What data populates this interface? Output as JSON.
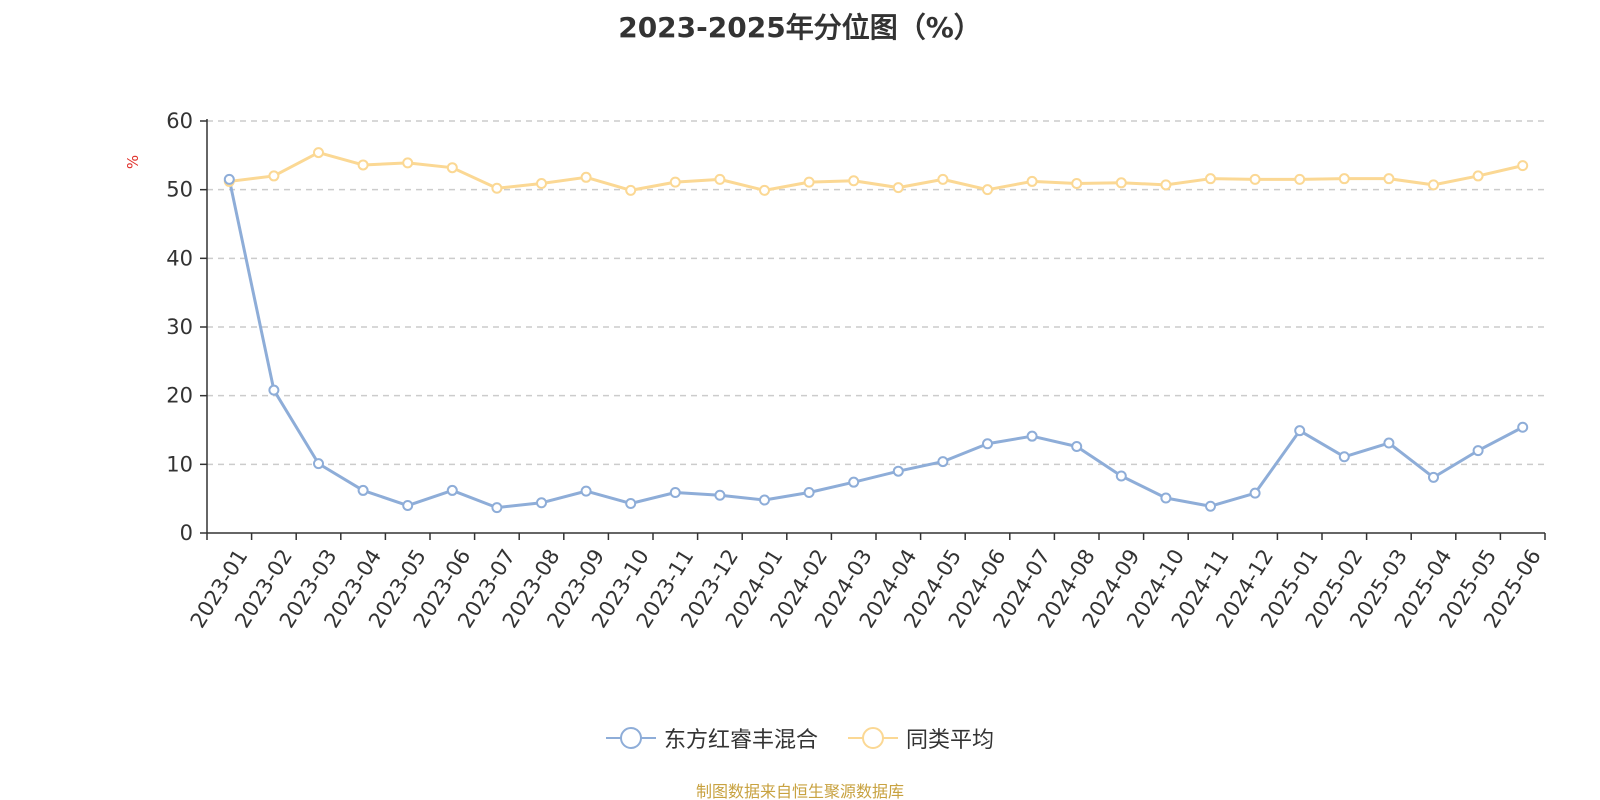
{
  "chart_data": {
    "type": "line",
    "title": "2023-2025年分位图（%）",
    "ylabel": "%",
    "ylim": [
      0,
      60
    ],
    "yticks": [
      0,
      10,
      20,
      30,
      40,
      50,
      60
    ],
    "grid": true,
    "legend_position": "bottom",
    "categories": [
      "2023-01",
      "2023-02",
      "2023-03",
      "2023-04",
      "2023-05",
      "2023-06",
      "2023-07",
      "2023-08",
      "2023-09",
      "2023-10",
      "2023-11",
      "2023-12",
      "2024-01",
      "2024-02",
      "2024-03",
      "2024-04",
      "2024-05",
      "2024-06",
      "2024-07",
      "2024-08",
      "2024-09",
      "2024-10",
      "2024-11",
      "2024-12",
      "2025-01",
      "2025-02",
      "2025-03",
      "2025-04",
      "2025-05",
      "2025-06"
    ],
    "series": [
      {
        "name": "东方红睿丰混合",
        "color": "#8eadd8",
        "values": [
          51.5,
          20.8,
          10.1,
          6.2,
          4.0,
          6.2,
          3.7,
          4.4,
          6.1,
          4.3,
          5.9,
          5.5,
          4.8,
          5.9,
          7.4,
          9.0,
          10.4,
          13.0,
          14.1,
          12.6,
          8.3,
          5.1,
          3.9,
          5.8,
          14.9,
          11.1,
          13.1,
          8.1,
          12.0,
          15.4
        ]
      },
      {
        "name": "同类平均",
        "color": "#fbd894",
        "values": [
          51.2,
          52.0,
          55.4,
          53.6,
          53.9,
          53.2,
          50.2,
          50.9,
          51.8,
          49.9,
          51.1,
          51.5,
          49.9,
          51.1,
          51.3,
          50.3,
          51.5,
          50.0,
          51.2,
          50.9,
          51.0,
          50.7,
          51.6,
          51.5,
          51.5,
          51.6,
          51.6,
          50.7,
          52.0,
          53.5
        ]
      }
    ]
  },
  "footer": {
    "source": "制图数据来自恒生聚源数据库"
  }
}
